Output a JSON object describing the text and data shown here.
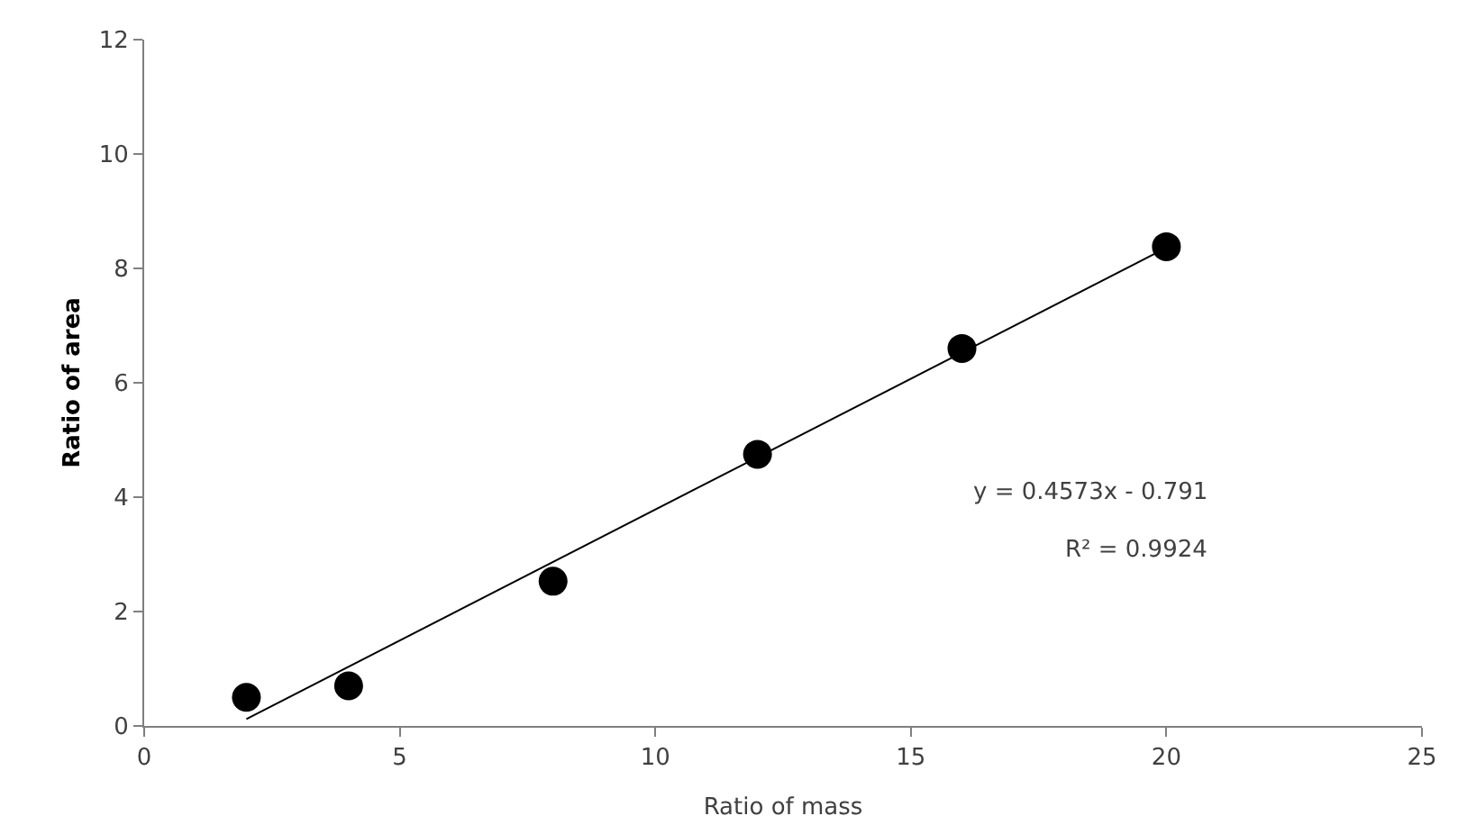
{
  "chart_data": {
    "type": "scatter",
    "xlabel": "Ratio of mass",
    "ylabel": "Ratio of area",
    "xlim": [
      0,
      25
    ],
    "xticks": [
      0,
      5,
      10,
      15,
      20,
      25
    ],
    "ylim": [
      0,
      12
    ],
    "yticks": [
      0,
      2,
      4,
      6,
      8,
      10,
      12
    ],
    "grid": false,
    "marker": "circle",
    "series": [
      {
        "color": "#000000",
        "x": [
          2,
          4,
          8,
          12,
          16,
          20
        ],
        "values": [
          0.5,
          0.7,
          2.53,
          4.75,
          6.6,
          8.38
        ]
      },
      {
        "type": "line",
        "marker": "none",
        "color": "#000000",
        "x": [
          2,
          20
        ],
        "values": [
          0.12,
          8.36
        ]
      }
    ],
    "annotations": [
      "y = 0.4573x - 0.791",
      "R² = 0.9924"
    ]
  }
}
